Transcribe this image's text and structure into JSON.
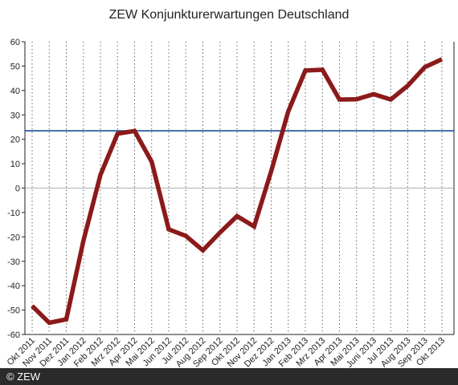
{
  "footer": {
    "copyright": "© ZEW"
  },
  "chart_data": {
    "type": "line",
    "title": "ZEW Konjunkturerwartungen Deutschland",
    "xlabel": "",
    "ylabel": "",
    "ylim": [
      -60,
      60
    ],
    "yticks": [
      60,
      50,
      40,
      30,
      20,
      10,
      0,
      -10,
      -20,
      -30,
      -40,
      -50,
      -60
    ],
    "grid": "vertical-dotted",
    "reference_line": {
      "value": 23.5,
      "color": "#1f4e99"
    },
    "categories": [
      "Okt 2011",
      "Nov 2011",
      "Dez 2011",
      "Jan 2012",
      "Feb 2012",
      "Mrz 2012",
      "Apr 2012",
      "Mai 2012",
      "Jun 2012",
      "Jul 2012",
      "Aug 2012",
      "Sep 2012",
      "Okt 2012",
      "Nov 2012",
      "Dez 2012",
      "Jan 2013",
      "Feb 2013",
      "Mrz 2013",
      "Apr 2013",
      "Mai 2013",
      "Juni 2013",
      "Jul 2013",
      "Aug 2013",
      "Sep 2013",
      "Okt 2013"
    ],
    "series": [
      {
        "color": "#8b1a1a",
        "values": [
          -48.3,
          -55.2,
          -53.8,
          -21.6,
          5.4,
          22.3,
          23.4,
          10.8,
          -16.9,
          -19.6,
          -25.5,
          -18.2,
          -11.5,
          -15.7,
          6.9,
          31.5,
          48.2,
          48.5,
          36.3,
          36.4,
          38.5,
          36.3,
          42.0,
          49.6,
          52.8
        ]
      }
    ],
    "colors": {
      "line": "#8b1a1a",
      "reference": "#1f4e99",
      "zero_line": "#b0b0b0",
      "grid": "#666666",
      "axis": "#222222"
    }
  }
}
